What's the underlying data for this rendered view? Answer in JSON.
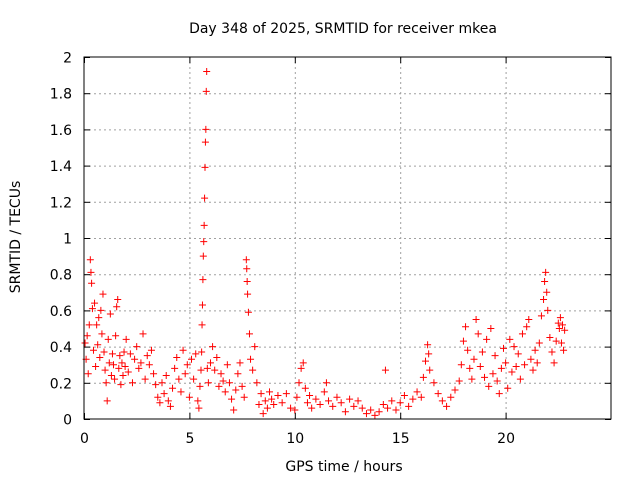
{
  "chart_data": {
    "type": "scatter",
    "title": "Day 348 of 2025, SRMTID for receiver mkea",
    "xlabel": "GPS time / hours",
    "ylabel": "SRMTID / TECUs",
    "xlim": [
      0,
      25
    ],
    "ylim": [
      0,
      2
    ],
    "xticks": [
      0,
      5,
      10,
      15,
      20
    ],
    "xtick_labels": [
      "0",
      "5",
      "10",
      "15",
      "20"
    ],
    "yticks": [
      0,
      0.2,
      0.4,
      0.6,
      0.8,
      1,
      1.2,
      1.4,
      1.6,
      1.8,
      2
    ],
    "ytick_labels": [
      "0",
      "0.2",
      "0.4",
      "0.6",
      "0.8",
      "1",
      "1.2",
      "1.4",
      "1.6",
      "1.8",
      "2"
    ],
    "grid": true,
    "marker": "plus",
    "series": [
      {
        "name": "mkea",
        "color": "#ff0000",
        "points": [
          [
            0.05,
            0.42
          ],
          [
            0.1,
            0.33
          ],
          [
            0.15,
            0.46
          ],
          [
            0.2,
            0.25
          ],
          [
            0.25,
            0.52
          ],
          [
            0.3,
            0.88
          ],
          [
            0.33,
            0.81
          ],
          [
            0.36,
            0.75
          ],
          [
            0.4,
            0.61
          ],
          [
            0.45,
            0.38
          ],
          [
            0.5,
            0.64
          ],
          [
            0.55,
            0.29
          ],
          [
            0.6,
            0.52
          ],
          [
            0.65,
            0.41
          ],
          [
            0.7,
            0.56
          ],
          [
            0.75,
            0.34
          ],
          [
            0.8,
            0.6
          ],
          [
            0.85,
            0.47
          ],
          [
            0.9,
            0.69
          ],
          [
            0.95,
            0.37
          ],
          [
            1.0,
            0.27
          ],
          [
            1.05,
            0.2
          ],
          [
            1.1,
            0.1
          ],
          [
            1.15,
            0.44
          ],
          [
            1.2,
            0.31
          ],
          [
            1.25,
            0.58
          ],
          [
            1.3,
            0.24
          ],
          [
            1.35,
            0.36
          ],
          [
            1.4,
            0.3
          ],
          [
            1.45,
            0.22
          ],
          [
            1.5,
            0.46
          ],
          [
            1.55,
            0.62
          ],
          [
            1.6,
            0.66
          ],
          [
            1.65,
            0.28
          ],
          [
            1.7,
            0.35
          ],
          [
            1.75,
            0.19
          ],
          [
            1.8,
            0.31
          ],
          [
            1.85,
            0.24
          ],
          [
            1.9,
            0.37
          ],
          [
            1.95,
            0.29
          ],
          [
            2.0,
            0.44
          ],
          [
            2.1,
            0.26
          ],
          [
            2.2,
            0.36
          ],
          [
            2.3,
            0.2
          ],
          [
            2.4,
            0.33
          ],
          [
            2.5,
            0.4
          ],
          [
            2.6,
            0.28
          ],
          [
            2.7,
            0.31
          ],
          [
            2.8,
            0.47
          ],
          [
            2.9,
            0.22
          ],
          [
            3.0,
            0.35
          ],
          [
            3.1,
            0.3
          ],
          [
            3.2,
            0.38
          ],
          [
            3.3,
            0.25
          ],
          [
            3.4,
            0.19
          ],
          [
            3.5,
            0.12
          ],
          [
            3.6,
            0.09
          ],
          [
            3.7,
            0.2
          ],
          [
            3.8,
            0.14
          ],
          [
            3.9,
            0.24
          ],
          [
            4.0,
            0.1
          ],
          [
            4.1,
            0.07
          ],
          [
            4.2,
            0.17
          ],
          [
            4.3,
            0.28
          ],
          [
            4.4,
            0.34
          ],
          [
            4.5,
            0.22
          ],
          [
            4.6,
            0.15
          ],
          [
            4.7,
            0.38
          ],
          [
            4.8,
            0.25
          ],
          [
            4.9,
            0.3
          ],
          [
            5.0,
            0.12
          ],
          [
            5.1,
            0.33
          ],
          [
            5.2,
            0.22
          ],
          [
            5.3,
            0.36
          ],
          [
            5.4,
            0.1
          ],
          [
            5.45,
            0.06
          ],
          [
            5.5,
            0.18
          ],
          [
            5.55,
            0.27
          ],
          [
            5.58,
            0.37
          ],
          [
            5.6,
            0.52
          ],
          [
            5.62,
            0.63
          ],
          [
            5.64,
            0.77
          ],
          [
            5.66,
            0.9
          ],
          [
            5.68,
            0.98
          ],
          [
            5.7,
            1.07
          ],
          [
            5.72,
            1.22
          ],
          [
            5.74,
            1.39
          ],
          [
            5.76,
            1.53
          ],
          [
            5.78,
            1.6
          ],
          [
            5.8,
            1.81
          ],
          [
            5.82,
            1.92
          ],
          [
            5.85,
            0.28
          ],
          [
            5.9,
            0.2
          ],
          [
            6.0,
            0.31
          ],
          [
            6.1,
            0.4
          ],
          [
            6.2,
            0.27
          ],
          [
            6.3,
            0.34
          ],
          [
            6.4,
            0.18
          ],
          [
            6.5,
            0.25
          ],
          [
            6.6,
            0.21
          ],
          [
            6.7,
            0.15
          ],
          [
            6.8,
            0.3
          ],
          [
            6.9,
            0.2
          ],
          [
            7.0,
            0.11
          ],
          [
            7.1,
            0.05
          ],
          [
            7.2,
            0.16
          ],
          [
            7.3,
            0.25
          ],
          [
            7.4,
            0.31
          ],
          [
            7.5,
            0.18
          ],
          [
            7.6,
            0.12
          ],
          [
            7.7,
            0.88
          ],
          [
            7.72,
            0.83
          ],
          [
            7.74,
            0.76
          ],
          [
            7.76,
            0.69
          ],
          [
            7.8,
            0.59
          ],
          [
            7.85,
            0.47
          ],
          [
            7.9,
            0.33
          ],
          [
            8.0,
            0.27
          ],
          [
            8.1,
            0.4
          ],
          [
            8.2,
            0.2
          ],
          [
            8.3,
            0.08
          ],
          [
            8.4,
            0.14
          ],
          [
            8.5,
            0.03
          ],
          [
            8.6,
            0.1
          ],
          [
            8.7,
            0.06
          ],
          [
            8.8,
            0.15
          ],
          [
            8.9,
            0.11
          ],
          [
            9.0,
            0.08
          ],
          [
            9.2,
            0.13
          ],
          [
            9.4,
            0.09
          ],
          [
            9.6,
            0.14
          ],
          [
            9.8,
            0.06
          ],
          [
            10.0,
            0.05
          ],
          [
            10.1,
            0.12
          ],
          [
            10.2,
            0.2
          ],
          [
            10.3,
            0.28
          ],
          [
            10.4,
            0.31
          ],
          [
            10.5,
            0.17
          ],
          [
            10.6,
            0.09
          ],
          [
            10.7,
            0.13
          ],
          [
            10.8,
            0.06
          ],
          [
            11.0,
            0.11
          ],
          [
            11.2,
            0.08
          ],
          [
            11.4,
            0.15
          ],
          [
            11.5,
            0.2
          ],
          [
            11.6,
            0.1
          ],
          [
            11.8,
            0.07
          ],
          [
            12.0,
            0.12
          ],
          [
            12.2,
            0.09
          ],
          [
            12.4,
            0.04
          ],
          [
            12.6,
            0.11
          ],
          [
            12.8,
            0.07
          ],
          [
            13.0,
            0.1
          ],
          [
            13.2,
            0.06
          ],
          [
            13.4,
            0.03
          ],
          [
            13.6,
            0.05
          ],
          [
            13.8,
            0.02
          ],
          [
            14.0,
            0.04
          ],
          [
            14.2,
            0.08
          ],
          [
            14.3,
            0.27
          ],
          [
            14.4,
            0.06
          ],
          [
            14.6,
            0.1
          ],
          [
            14.8,
            0.05
          ],
          [
            15.0,
            0.09
          ],
          [
            15.2,
            0.13
          ],
          [
            15.4,
            0.07
          ],
          [
            15.6,
            0.11
          ],
          [
            15.8,
            0.15
          ],
          [
            16.0,
            0.12
          ],
          [
            16.1,
            0.23
          ],
          [
            16.2,
            0.32
          ],
          [
            16.3,
            0.41
          ],
          [
            16.35,
            0.36
          ],
          [
            16.4,
            0.27
          ],
          [
            16.6,
            0.2
          ],
          [
            16.8,
            0.14
          ],
          [
            17.0,
            0.1
          ],
          [
            17.2,
            0.07
          ],
          [
            17.4,
            0.12
          ],
          [
            17.6,
            0.16
          ],
          [
            17.8,
            0.21
          ],
          [
            17.9,
            0.3
          ],
          [
            18.0,
            0.43
          ],
          [
            18.1,
            0.51
          ],
          [
            18.2,
            0.38
          ],
          [
            18.3,
            0.28
          ],
          [
            18.4,
            0.22
          ],
          [
            18.5,
            0.33
          ],
          [
            18.6,
            0.55
          ],
          [
            18.7,
            0.47
          ],
          [
            18.8,
            0.29
          ],
          [
            18.9,
            0.37
          ],
          [
            19.0,
            0.23
          ],
          [
            19.1,
            0.44
          ],
          [
            19.2,
            0.18
          ],
          [
            19.3,
            0.5
          ],
          [
            19.4,
            0.25
          ],
          [
            19.5,
            0.35
          ],
          [
            19.6,
            0.21
          ],
          [
            19.7,
            0.14
          ],
          [
            19.8,
            0.28
          ],
          [
            19.9,
            0.39
          ],
          [
            20.0,
            0.31
          ],
          [
            20.1,
            0.17
          ],
          [
            20.2,
            0.44
          ],
          [
            20.3,
            0.26
          ],
          [
            20.4,
            0.4
          ],
          [
            20.5,
            0.29
          ],
          [
            20.6,
            0.36
          ],
          [
            20.7,
            0.22
          ],
          [
            20.8,
            0.47
          ],
          [
            20.9,
            0.3
          ],
          [
            21.0,
            0.51
          ],
          [
            21.1,
            0.55
          ],
          [
            21.2,
            0.33
          ],
          [
            21.3,
            0.27
          ],
          [
            21.4,
            0.38
          ],
          [
            21.5,
            0.31
          ],
          [
            21.6,
            0.42
          ],
          [
            21.7,
            0.57
          ],
          [
            21.8,
            0.66
          ],
          [
            21.85,
            0.76
          ],
          [
            21.9,
            0.81
          ],
          [
            21.95,
            0.7
          ],
          [
            22.0,
            0.6
          ],
          [
            22.1,
            0.45
          ],
          [
            22.2,
            0.37
          ],
          [
            22.3,
            0.31
          ],
          [
            22.4,
            0.43
          ],
          [
            22.5,
            0.53
          ],
          [
            22.55,
            0.5
          ],
          [
            22.6,
            0.56
          ],
          [
            22.65,
            0.42
          ],
          [
            22.7,
            0.52
          ],
          [
            22.75,
            0.38
          ],
          [
            22.8,
            0.49
          ]
        ]
      }
    ]
  }
}
